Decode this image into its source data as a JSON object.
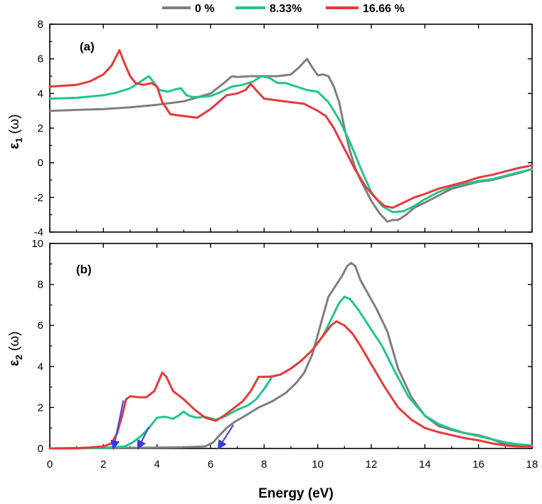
{
  "chart_data": {
    "type": "line",
    "xlabel": "Energy (eV)",
    "xlim": [
      0,
      18
    ],
    "xticks": [
      0,
      2,
      4,
      6,
      8,
      10,
      12,
      14,
      16,
      18
    ],
    "legend": [
      {
        "name": "0 %",
        "color": "#7f7f7f"
      },
      {
        "name": "8.33%",
        "color": "#1fc78a"
      },
      {
        "name": "16.66 %",
        "color": "#e8383a"
      }
    ],
    "panels": [
      {
        "label": "(a)",
        "ylabel_main": "ε",
        "ylabel_sub": "1",
        "ylabel_tail": " (ω)",
        "ylim": [
          -4,
          8
        ],
        "yticks": [
          -4,
          -2,
          0,
          2,
          4,
          6,
          8
        ],
        "series": [
          {
            "name": "0 %",
            "color": "#7f7f7f",
            "x": [
              0,
              1,
              2,
              3,
              4,
              5,
              6,
              6.5,
              6.8,
              7,
              7.5,
              8,
              8.5,
              9,
              9.3,
              9.6,
              9.8,
              10,
              10.2,
              10.4,
              10.6,
              10.8,
              11,
              11.2,
              11.4,
              11.6,
              11.8,
              12,
              12.3,
              12.6,
              12.8,
              13,
              13.3,
              13.6,
              14,
              14.5,
              15,
              15.5,
              16,
              16.5,
              17,
              17.5,
              18
            ],
            "y": [
              3.0,
              3.05,
              3.1,
              3.2,
              3.35,
              3.55,
              4.0,
              4.6,
              5.0,
              4.95,
              5.0,
              5.0,
              5.0,
              5.1,
              5.5,
              6.0,
              5.5,
              5.05,
              5.1,
              5.0,
              4.4,
              3.5,
              2.0,
              0.7,
              -0.3,
              -1.0,
              -1.6,
              -2.2,
              -2.9,
              -3.4,
              -3.3,
              -3.3,
              -3.0,
              -2.6,
              -2.3,
              -1.9,
              -1.5,
              -1.3,
              -1.1,
              -1.0,
              -0.8,
              -0.6,
              -0.35
            ]
          },
          {
            "name": "8.33%",
            "color": "#1fc78a",
            "x": [
              0,
              1,
              2,
              2.5,
              3,
              3.4,
              3.7,
              3.9,
              4.1,
              4.4,
              4.7,
              4.9,
              5.1,
              5.3,
              5.6,
              6,
              6.4,
              6.8,
              7.2,
              7.6,
              7.9,
              8.2,
              8.5,
              8.8,
              9.2,
              9.6,
              10,
              10.4,
              10.8,
              11.2,
              11.6,
              12,
              12.4,
              12.8,
              13.2,
              13.6,
              14,
              14.5,
              15,
              15.5,
              16,
              16.5,
              17,
              17.5,
              18
            ],
            "y": [
              3.7,
              3.75,
              3.9,
              4.05,
              4.3,
              4.7,
              5.0,
              4.6,
              4.2,
              4.1,
              4.25,
              4.3,
              3.9,
              3.8,
              3.8,
              3.85,
              4.1,
              4.4,
              4.5,
              4.7,
              5.0,
              4.9,
              4.6,
              4.6,
              4.4,
              4.2,
              4.1,
              3.5,
              2.5,
              1.2,
              -0.3,
              -1.7,
              -2.5,
              -2.85,
              -2.8,
              -2.5,
              -2.1,
              -1.7,
              -1.4,
              -1.2,
              -1.05,
              -0.95,
              -0.75,
              -0.55,
              -0.38
            ]
          },
          {
            "name": "16.66 %",
            "color": "#e8383a",
            "x": [
              0,
              1,
              1.5,
              2,
              2.3,
              2.5,
              2.6,
              2.8,
              3,
              3.2,
              3.5,
              3.8,
              4,
              4.2,
              4.5,
              5,
              5.5,
              6,
              6.3,
              6.6,
              7,
              7.3,
              7.5,
              7.7,
              8,
              8.5,
              9,
              9.5,
              10,
              10.3,
              10.6,
              11,
              11.4,
              11.8,
              12.2,
              12.5,
              12.8,
              13.2,
              13.6,
              14,
              14.5,
              15,
              15.5,
              16,
              16.5,
              17,
              17.5,
              18
            ],
            "y": [
              4.4,
              4.5,
              4.7,
              5.1,
              5.6,
              6.2,
              6.5,
              5.7,
              5.0,
              4.6,
              4.5,
              4.6,
              4.4,
              3.5,
              2.8,
              2.7,
              2.6,
              3.1,
              3.5,
              3.9,
              4.0,
              4.2,
              4.55,
              4.2,
              3.7,
              3.6,
              3.5,
              3.4,
              3.0,
              2.7,
              2.0,
              0.8,
              -0.4,
              -1.4,
              -2.1,
              -2.5,
              -2.6,
              -2.3,
              -2.0,
              -1.8,
              -1.5,
              -1.3,
              -1.1,
              -0.85,
              -0.7,
              -0.5,
              -0.3,
              -0.15
            ]
          }
        ]
      },
      {
        "label": "(b)",
        "ylabel_main": "ε",
        "ylabel_sub": "2",
        "ylabel_tail": " (ω)",
        "ylim": [
          0,
          10
        ],
        "yticks": [
          0,
          2,
          4,
          6,
          8,
          10
        ],
        "series": [
          {
            "name": "0 %",
            "color": "#7f7f7f",
            "x": [
              0,
              1,
              2,
              3,
              4,
              5,
              5.8,
              6.1,
              6.3,
              6.6,
              6.9,
              7.3,
              7.8,
              8.3,
              8.8,
              9.2,
              9.5,
              9.8,
              10.1,
              10.4,
              10.7,
              10.9,
              11.1,
              11.25,
              11.4,
              11.6,
              11.9,
              12.2,
              12.6,
              13,
              13.5,
              14,
              14.5,
              15,
              15.5,
              16,
              16.4,
              16.8,
              17.2,
              17.6,
              18
            ],
            "y": [
              0.0,
              0.01,
              0.02,
              0.03,
              0.04,
              0.06,
              0.1,
              0.3,
              0.6,
              1.0,
              1.3,
              1.6,
              2.0,
              2.3,
              2.7,
              3.2,
              3.7,
              4.6,
              6.0,
              7.4,
              8.0,
              8.4,
              8.9,
              9.05,
              8.9,
              8.2,
              7.5,
              6.8,
              5.7,
              3.9,
              2.5,
              1.6,
              1.1,
              0.9,
              0.75,
              0.65,
              0.5,
              0.3,
              0.15,
              0.1,
              0.1
            ]
          },
          {
            "name": "8.33%",
            "color": "#1fc78a",
            "x": [
              0,
              1,
              2,
              2.8,
              3.1,
              3.4,
              3.7,
              4.0,
              4.3,
              4.6,
              4.8,
              5.0,
              5.2,
              5.5,
              5.8,
              6.2,
              6.6,
              7.0,
              7.4,
              7.7,
              8.0,
              8.3,
              8.6,
              9.0,
              9.4,
              9.8,
              10.2,
              10.5,
              10.8,
              11.0,
              11.2,
              11.5,
              11.9,
              12.4,
              12.9,
              13.4,
              14,
              14.5,
              15,
              15.5,
              16,
              16.5,
              17,
              17.5,
              18
            ],
            "y": [
              0.0,
              0.01,
              0.03,
              0.1,
              0.3,
              0.6,
              1.0,
              1.5,
              1.55,
              1.45,
              1.6,
              1.8,
              1.6,
              1.5,
              1.55,
              1.4,
              1.6,
              1.9,
              2.1,
              2.4,
              2.9,
              3.5,
              3.6,
              3.9,
              4.3,
              4.8,
              5.5,
              6.3,
              7.1,
              7.4,
              7.3,
              6.8,
              6.0,
              5.0,
              3.7,
              2.5,
              1.6,
              1.2,
              0.95,
              0.75,
              0.6,
              0.45,
              0.3,
              0.2,
              0.15
            ]
          },
          {
            "name": "16.66 %",
            "color": "#e8383a",
            "x": [
              0,
              1,
              1.5,
              2,
              2.3,
              2.5,
              2.7,
              2.85,
              3.0,
              3.3,
              3.6,
              3.9,
              4.1,
              4.2,
              4.35,
              4.6,
              5.0,
              5.4,
              5.8,
              6.2,
              6.5,
              6.8,
              7.2,
              7.5,
              7.8,
              8.2,
              8.6,
              9.0,
              9.4,
              9.8,
              10.2,
              10.5,
              10.7,
              11.0,
              11.3,
              11.6,
              12.0,
              12.5,
              13.0,
              13.5,
              14,
              14.5,
              15,
              15.5,
              16,
              16.5,
              17,
              17.5,
              18
            ],
            "y": [
              0.0,
              0.02,
              0.05,
              0.1,
              0.25,
              0.7,
              1.6,
              2.4,
              2.55,
              2.5,
              2.5,
              2.8,
              3.4,
              3.7,
              3.5,
              2.8,
              2.4,
              1.9,
              1.5,
              1.35,
              1.6,
              1.9,
              2.3,
              2.8,
              3.5,
              3.5,
              3.6,
              3.9,
              4.3,
              4.8,
              5.5,
              6.0,
              6.2,
              6.0,
              5.6,
              5.0,
              4.1,
              3.0,
              2.0,
              1.4,
              1.0,
              0.8,
              0.65,
              0.5,
              0.4,
              0.25,
              0.15,
              0.1,
              0.1
            ]
          }
        ],
        "onset_arrows": [
          {
            "series": "16.66 %",
            "color": "#4a4ae0",
            "from": [
              2.75,
              2.35
            ],
            "to": [
              2.38,
              0.02
            ]
          },
          {
            "series": "8.33%",
            "color": "#4a4ae0",
            "from": [
              3.7,
              1.05
            ],
            "to": [
              3.3,
              0.02
            ]
          },
          {
            "series": "0 %",
            "color": "#4a4ae0",
            "from": [
              6.85,
              1.15
            ],
            "to": [
              6.3,
              0.02
            ]
          }
        ]
      }
    ]
  }
}
